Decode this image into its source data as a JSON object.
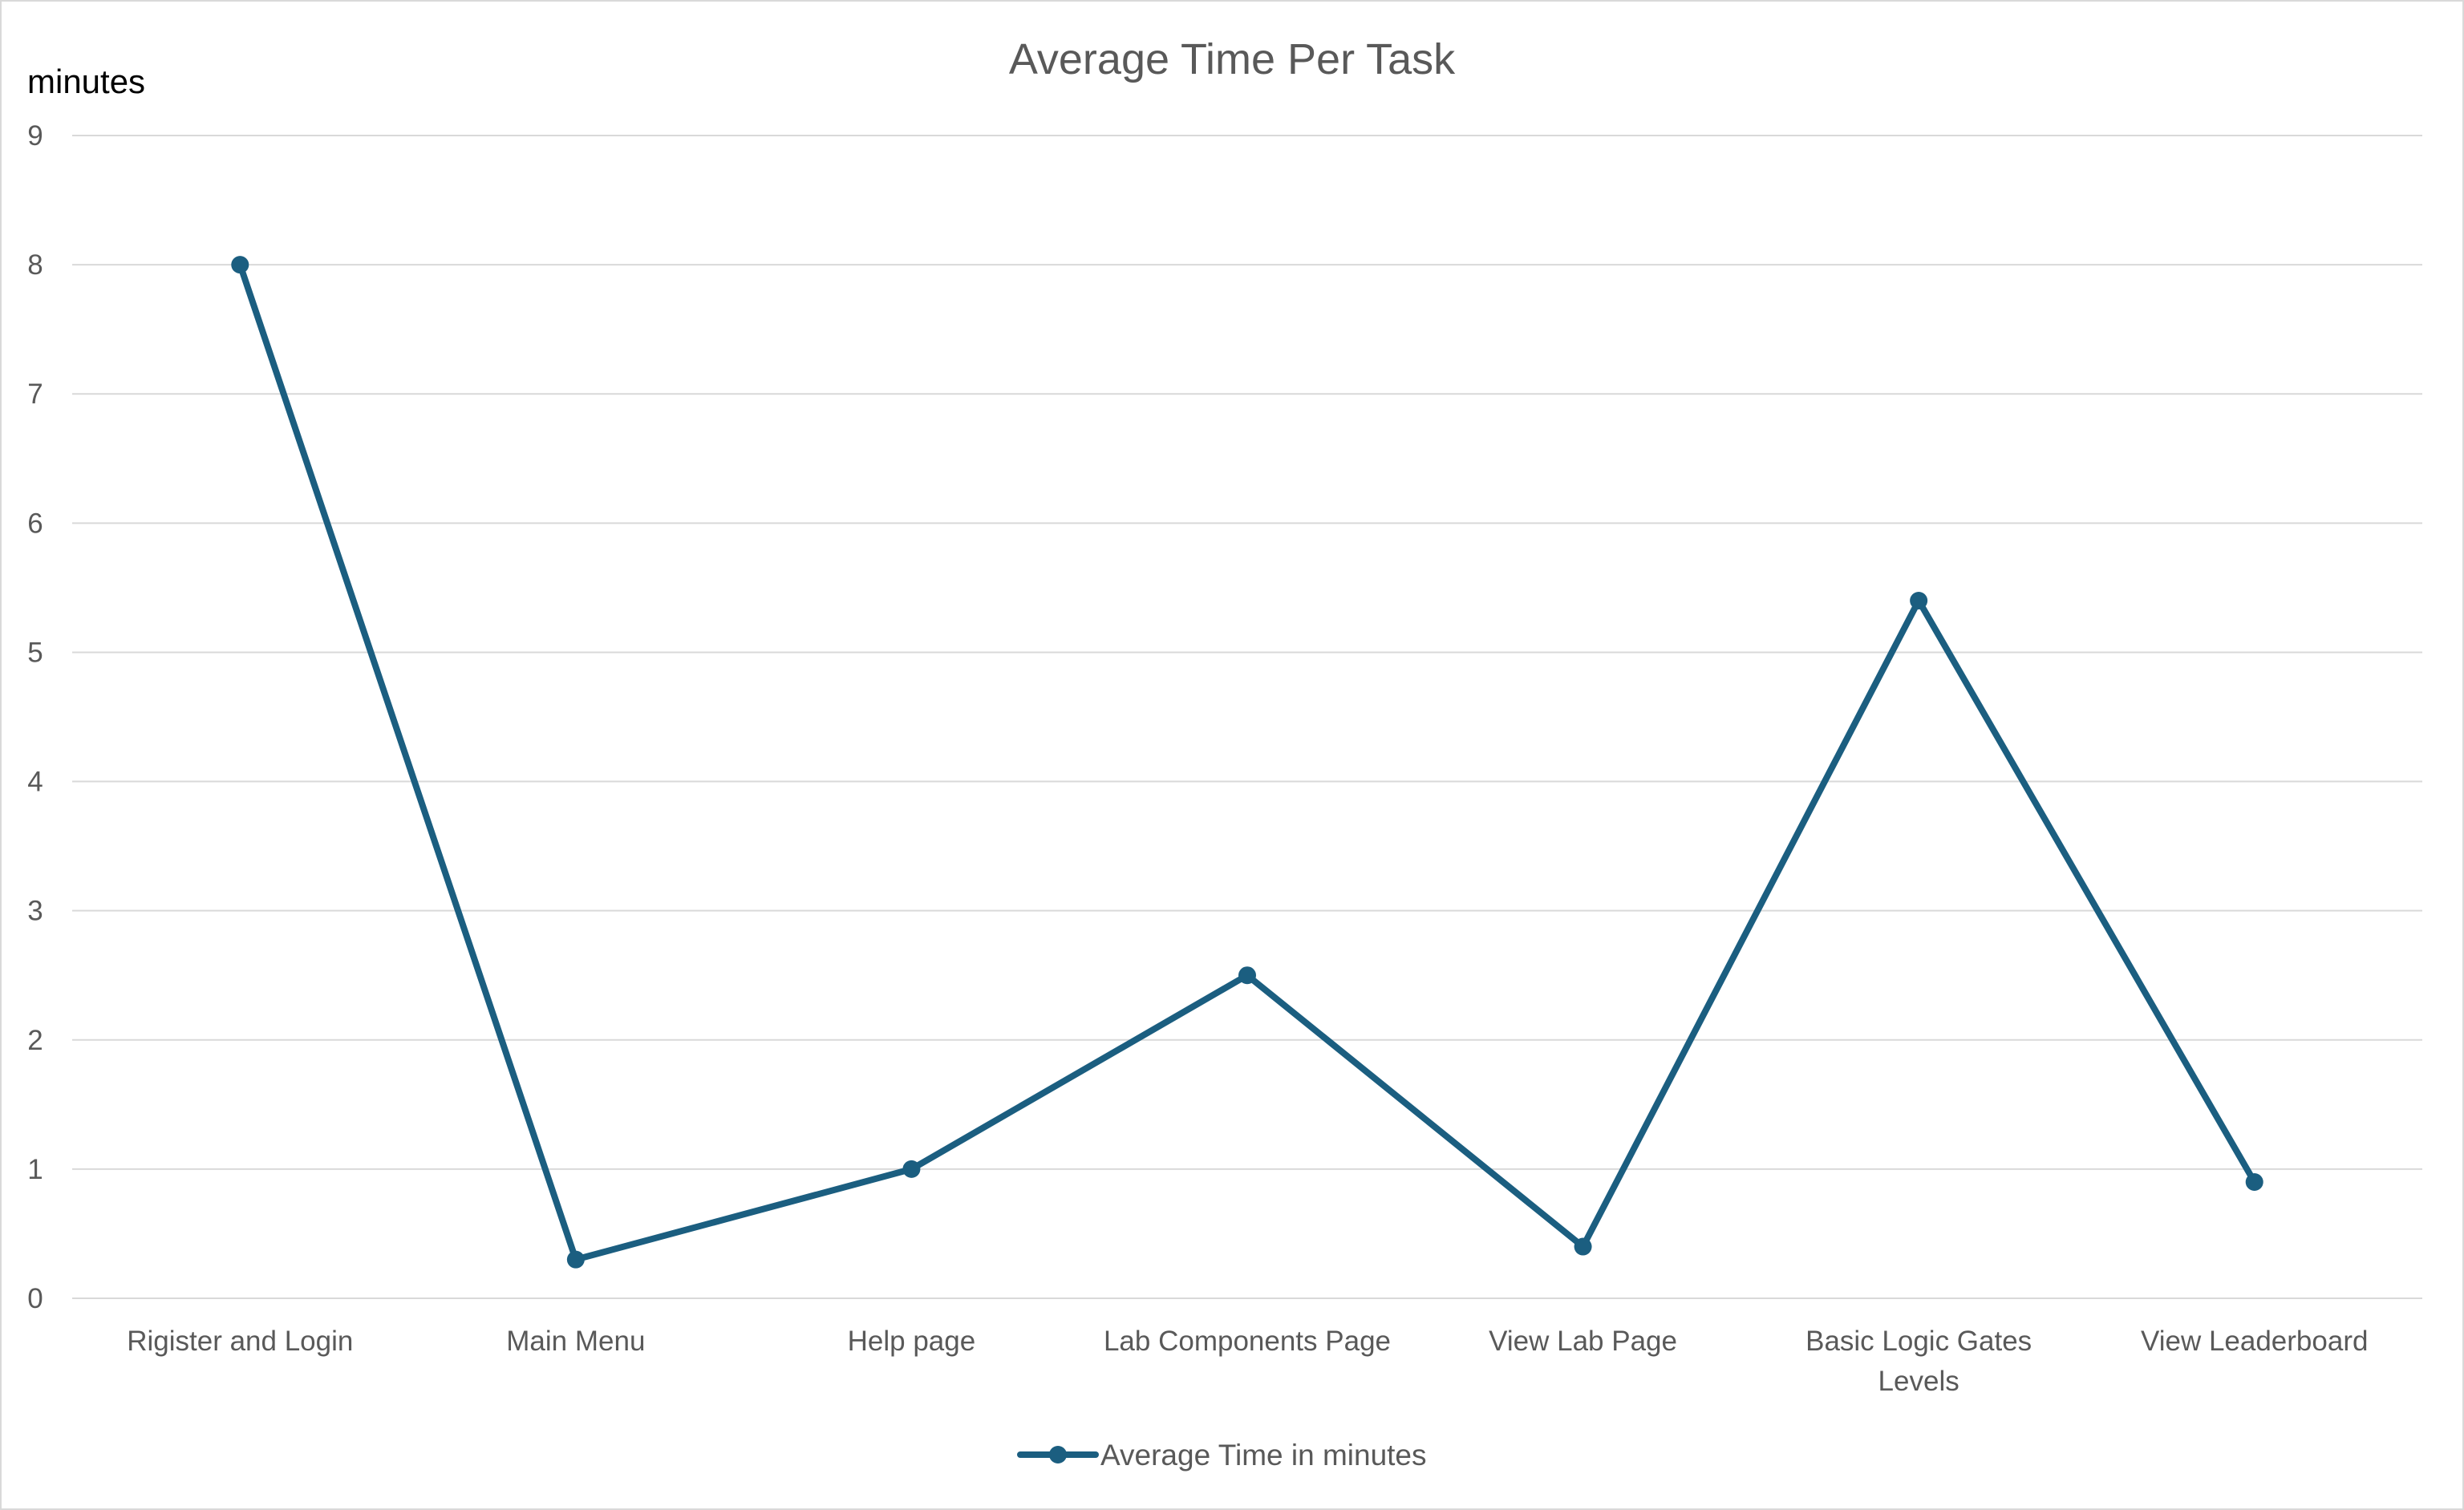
{
  "chart_data": {
    "type": "line",
    "title": "Average Time Per Task",
    "ylabel": "minutes",
    "xlabel": "",
    "ylim": [
      0,
      9
    ],
    "yticks": [
      0,
      1,
      2,
      3,
      4,
      5,
      6,
      7,
      8,
      9
    ],
    "categories": [
      "Rigister and Login",
      "Main Menu",
      "Help page",
      "Lab Components Page",
      "View Lab Page",
      "Basic Logic Gates Levels",
      "View Leaderboard"
    ],
    "series": [
      {
        "name": "Average Time in minutes",
        "color": "#1b5e80",
        "marker": "circle",
        "values": [
          8,
          0.3,
          1,
          2.5,
          0.4,
          5.4,
          0.9
        ]
      }
    ],
    "grid": true,
    "legend": "bottom",
    "colors": {
      "gridline": "#d9d9d9",
      "text": "#595959",
      "line": "#1b5e80"
    }
  }
}
